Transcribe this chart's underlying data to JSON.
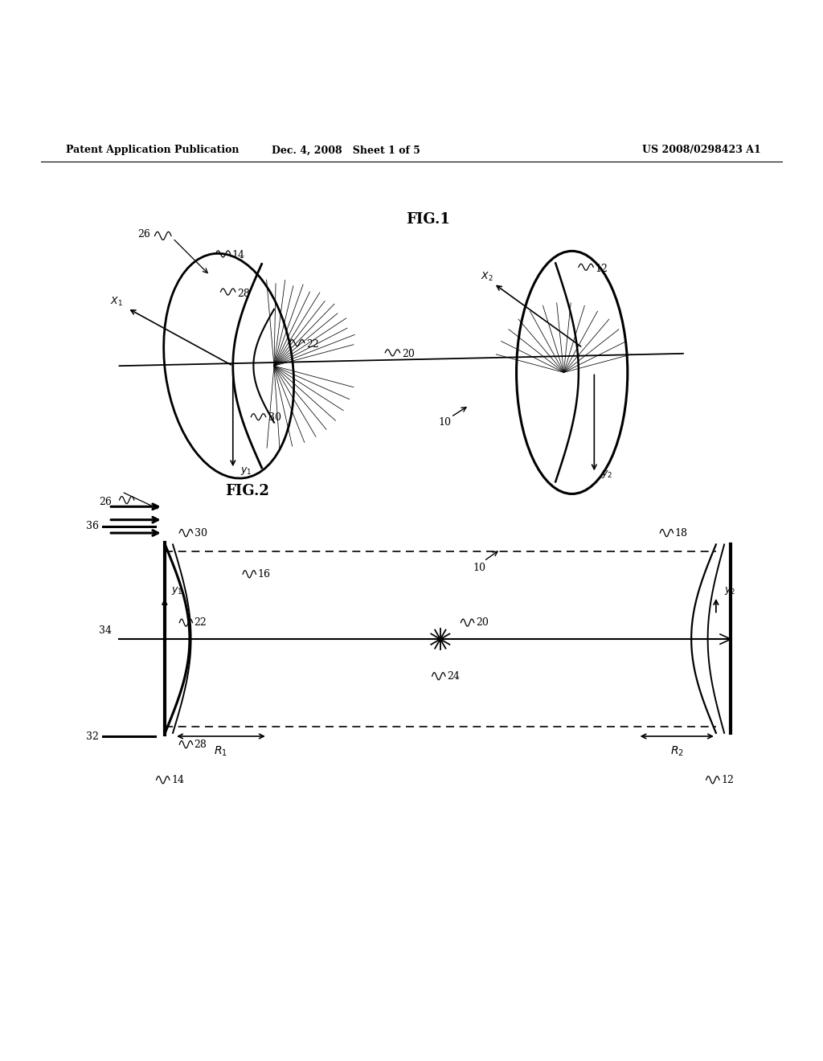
{
  "bg_color": "#ffffff",
  "line_color": "#000000",
  "header_text": "Patent Application Publication",
  "header_date": "Dec. 4, 2008   Sheet 1 of 5",
  "header_patent": "US 2008/0298423 A1",
  "fig1_label": "FIG.1",
  "fig2_label": "FIG.2"
}
